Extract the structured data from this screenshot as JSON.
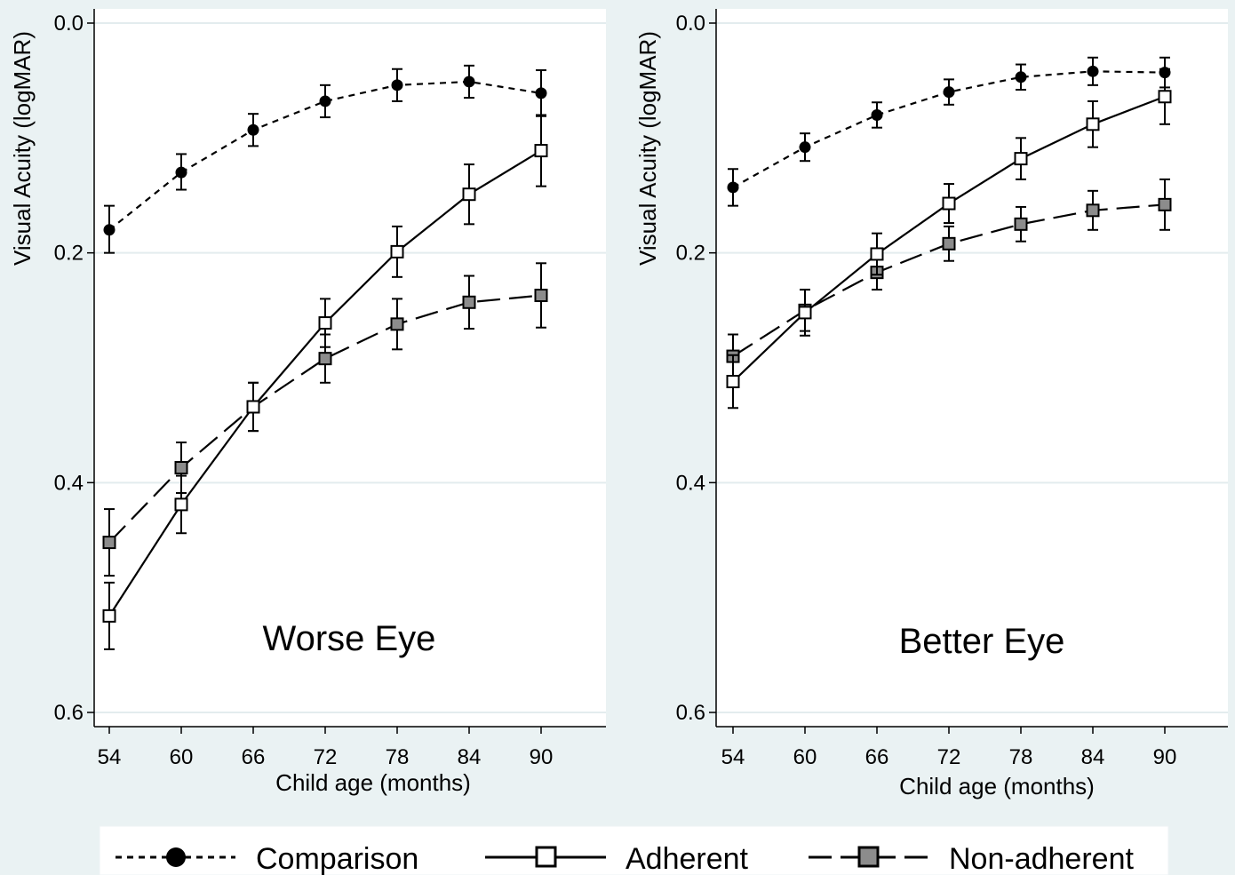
{
  "chart_data": [
    {
      "type": "line",
      "title": "Worse Eye",
      "xlabel": "Child age (months)",
      "ylabel": "Visual Acuity (logMAR)",
      "x": [
        54,
        60,
        66,
        72,
        78,
        84,
        90
      ],
      "xticks": [
        "54",
        "60",
        "66",
        "72",
        "78",
        "84",
        "90"
      ],
      "yticks": [
        "0.0",
        "0.2",
        "0.4",
        "0.6"
      ],
      "ylim": [
        0.0,
        0.6
      ],
      "y_inverted": true,
      "grid": true,
      "error_bars": true,
      "series": [
        {
          "name": "Comparison",
          "values": [
            0.18,
            0.13,
            0.093,
            0.068,
            0.054,
            0.051,
            0.061
          ],
          "ci_low": [
            0.159,
            0.114,
            0.079,
            0.054,
            0.04,
            0.037,
            0.041
          ],
          "ci_high": [
            0.2,
            0.145,
            0.107,
            0.082,
            0.068,
            0.065,
            0.081
          ]
        },
        {
          "name": "Adherent",
          "values": [
            0.516,
            0.419,
            0.334,
            0.261,
            0.199,
            0.149,
            0.111
          ],
          "ci_low": [
            0.487,
            0.394,
            0.313,
            0.24,
            0.177,
            0.123,
            0.08
          ],
          "ci_high": [
            0.545,
            0.444,
            0.355,
            0.282,
            0.221,
            0.175,
            0.142
          ]
        },
        {
          "name": "Non-adherent",
          "values": [
            0.452,
            0.387,
            0.334,
            0.292,
            0.262,
            0.243,
            0.237
          ],
          "ci_low": [
            0.423,
            0.365,
            0.313,
            0.271,
            0.24,
            0.22,
            0.209
          ],
          "ci_high": [
            0.481,
            0.409,
            0.355,
            0.313,
            0.284,
            0.266,
            0.265
          ]
        }
      ]
    },
    {
      "type": "line",
      "title": "Better Eye",
      "xlabel": "Child age (months)",
      "ylabel": "Visual Acuity (logMAR)",
      "x": [
        54,
        60,
        66,
        72,
        78,
        84,
        90
      ],
      "xticks": [
        "54",
        "60",
        "66",
        "72",
        "78",
        "84",
        "90"
      ],
      "yticks": [
        "0.0",
        "0.2",
        "0.4",
        "0.6"
      ],
      "ylim": [
        0.0,
        0.6
      ],
      "y_inverted": true,
      "grid": true,
      "error_bars": true,
      "series": [
        {
          "name": "Comparison",
          "values": [
            0.143,
            0.108,
            0.08,
            0.06,
            0.047,
            0.042,
            0.043
          ],
          "ci_low": [
            0.127,
            0.096,
            0.069,
            0.049,
            0.036,
            0.03,
            0.03
          ],
          "ci_high": [
            0.159,
            0.12,
            0.091,
            0.071,
            0.058,
            0.054,
            0.056
          ]
        },
        {
          "name": "Adherent",
          "values": [
            0.312,
            0.252,
            0.201,
            0.157,
            0.118,
            0.088,
            0.064
          ],
          "ci_low": [
            0.289,
            0.232,
            0.183,
            0.14,
            0.1,
            0.068,
            0.04
          ],
          "ci_high": [
            0.335,
            0.272,
            0.219,
            0.174,
            0.136,
            0.108,
            0.088
          ]
        },
        {
          "name": "Non-adherent",
          "values": [
            0.29,
            0.25,
            0.217,
            0.192,
            0.175,
            0.163,
            0.158
          ],
          "ci_low": [
            0.271,
            0.232,
            0.202,
            0.177,
            0.16,
            0.146,
            0.136
          ],
          "ci_high": [
            0.309,
            0.268,
            0.232,
            0.207,
            0.19,
            0.18,
            0.18
          ]
        }
      ]
    }
  ],
  "legend": {
    "placement": "bottom",
    "items": [
      {
        "label": "Comparison",
        "line": "dotted",
        "marker": "filled-circle"
      },
      {
        "label": "Adherent",
        "line": "solid",
        "marker": "hollow-square"
      },
      {
        "label": "Non-adherent",
        "line": "long-dash",
        "marker": "gray-square"
      }
    ]
  },
  "colors": {
    "background": "#eaf2f3",
    "plot_area": "#ffffff",
    "gridline": "#e3ecee",
    "ink": "#000000",
    "non_adherent_fill": "#8c8c8c",
    "adherent_fill": "#ffffff"
  }
}
